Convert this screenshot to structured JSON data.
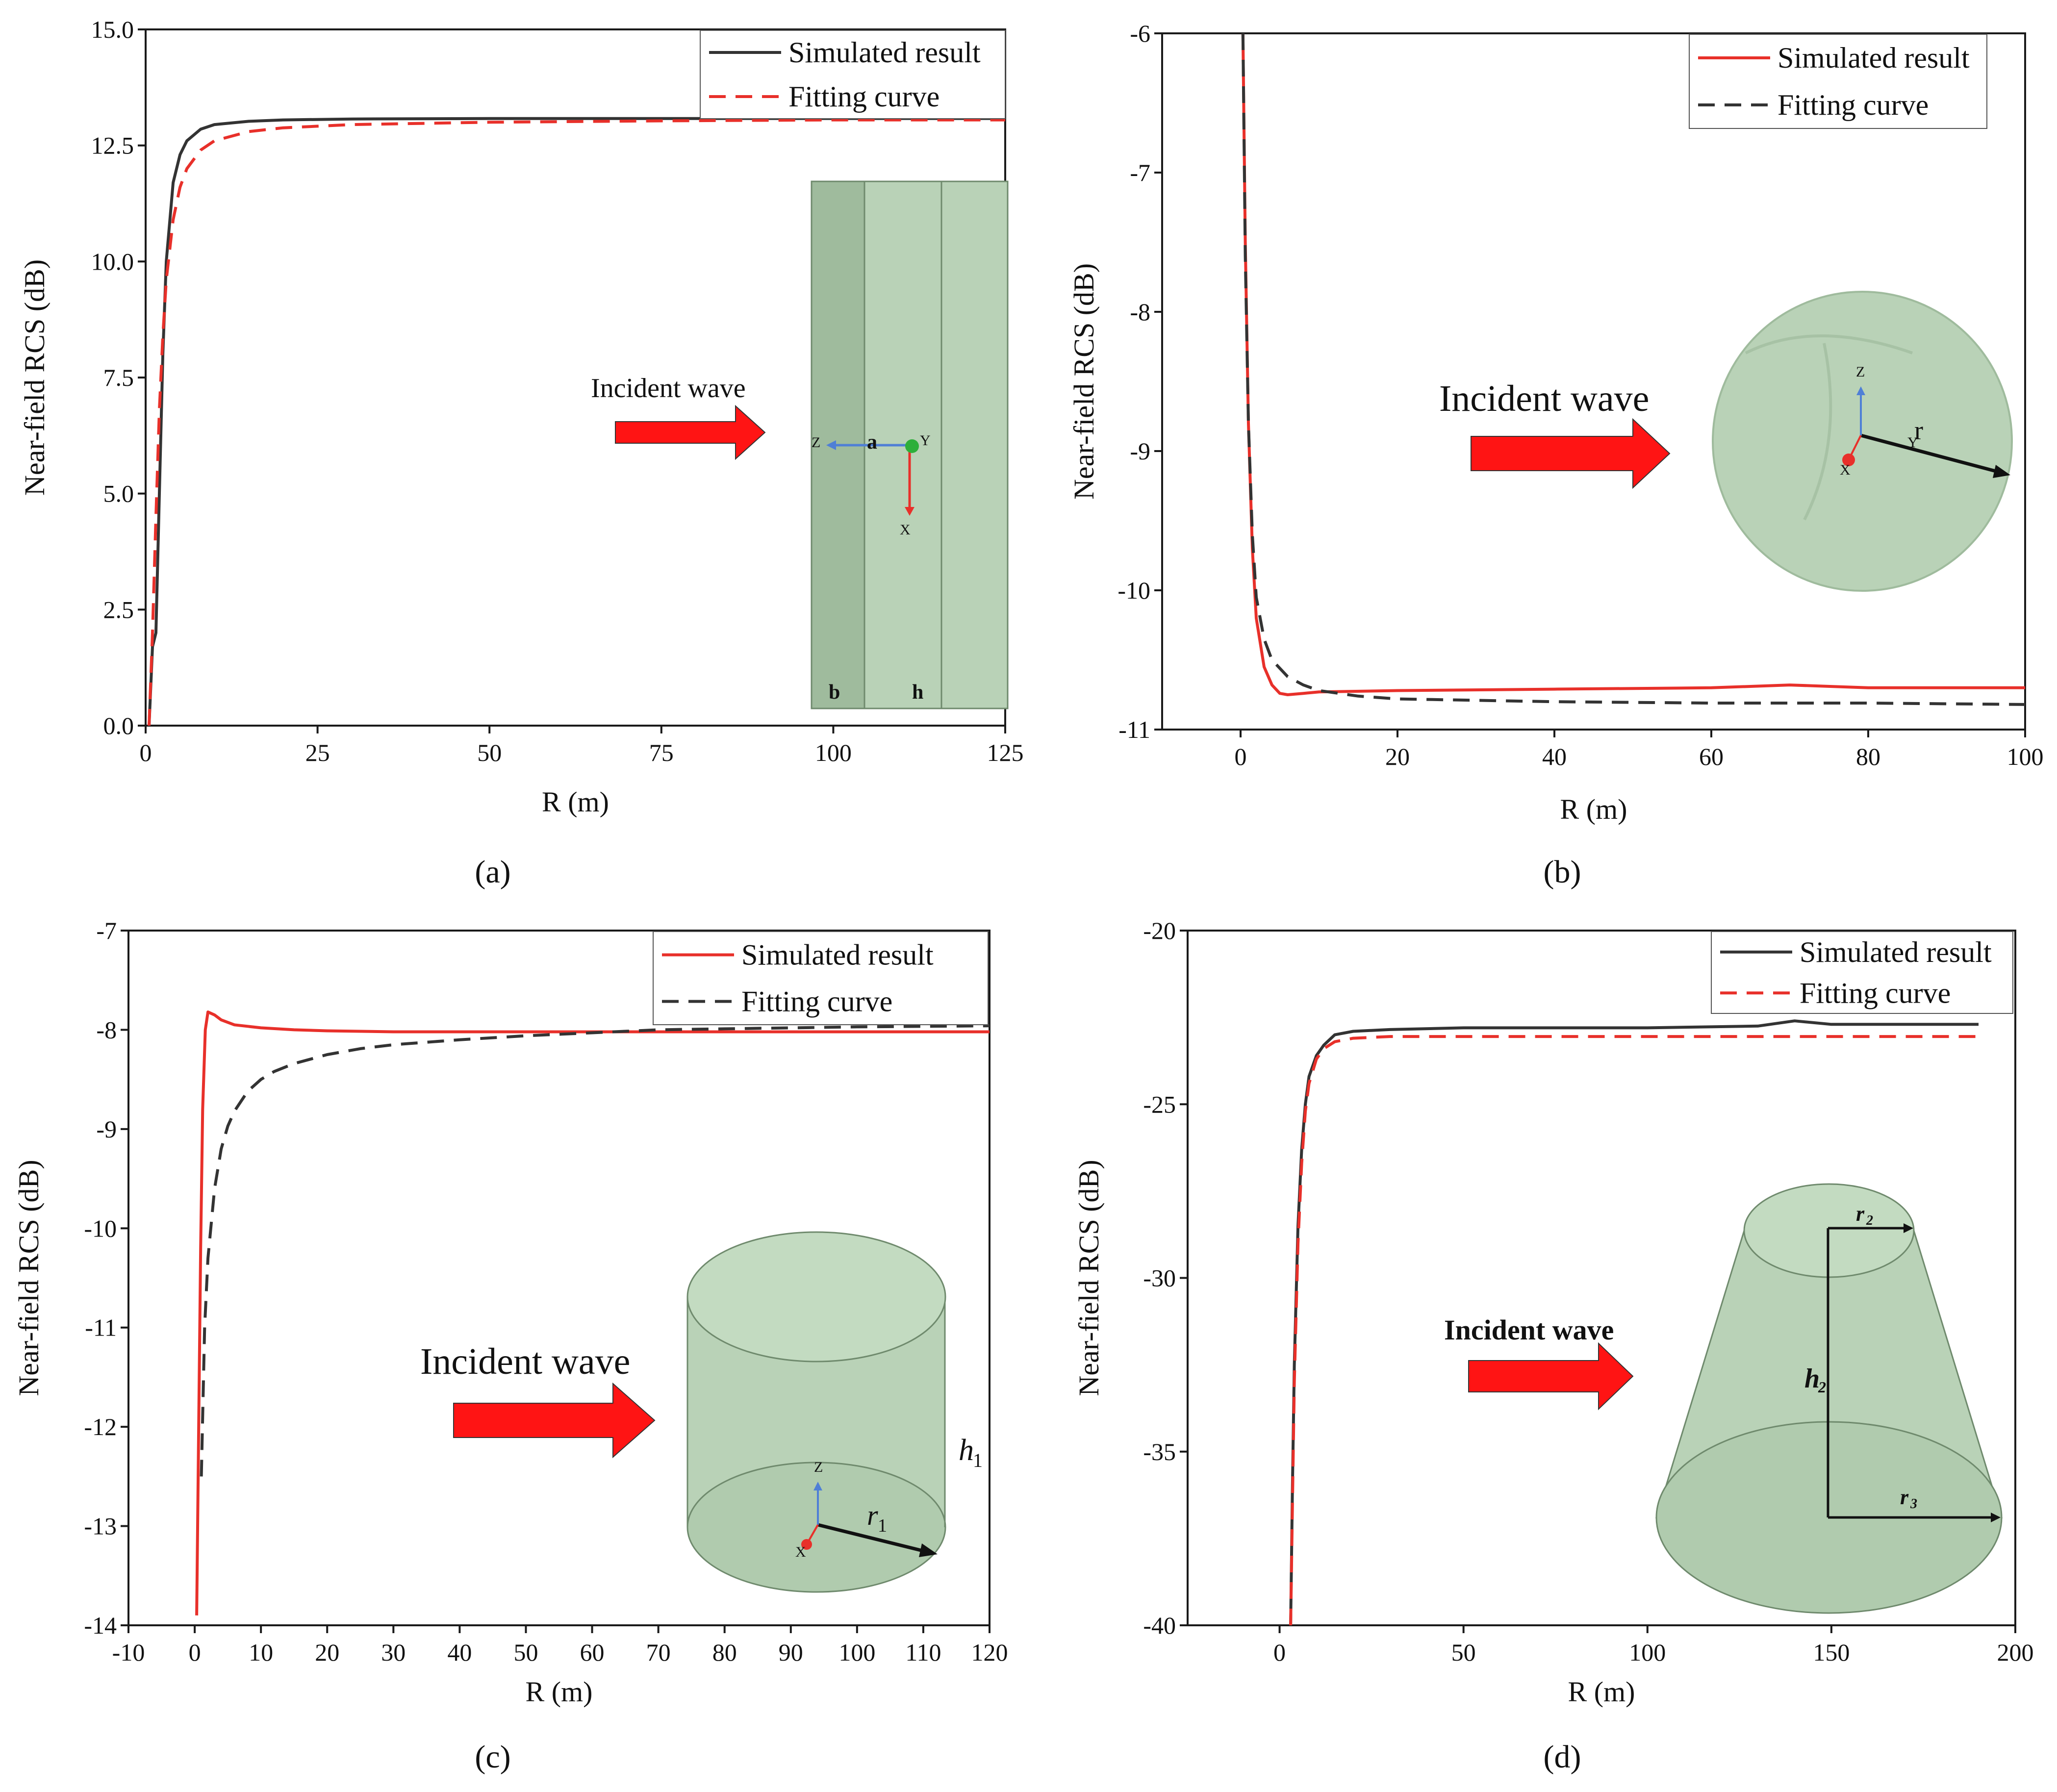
{
  "colors": {
    "red": "#e8302a",
    "black": "#333333",
    "frame": "#1a1a1a",
    "shape_fill": "#b9d2b7",
    "shape_fill_dark": "#9fbb9d",
    "shape_stroke": "#6f8a6d",
    "arrow_red": "#ff1414"
  },
  "chart_data": [
    {
      "panel": "a",
      "caption": "(a)",
      "type": "line",
      "xlabel": "R (m)",
      "ylabel": "Near-field RCS (dB)",
      "xlim": [
        0,
        125
      ],
      "ylim": [
        0,
        15
      ],
      "xticks": [
        0,
        25,
        50,
        75,
        100,
        125
      ],
      "xtick_labels": [
        "0",
        "25",
        "50",
        "75",
        "100",
        "125"
      ],
      "yticks": [
        0,
        2.5,
        5,
        7.5,
        10,
        12.5,
        15
      ],
      "ytick_labels": [
        "0.0",
        "2.5",
        "5.0",
        "7.5",
        "10.0",
        "12.5",
        "15.0"
      ],
      "legend": {
        "position": "top-right"
      },
      "series": [
        {
          "name": "Simulated result",
          "color": "black",
          "dash": "solid",
          "x": [
            0.5,
            1,
            1.5,
            2,
            2.5,
            3,
            4,
            5,
            6,
            8,
            10,
            15,
            20,
            30,
            50,
            75,
            100,
            125
          ],
          "y": [
            0.0,
            1.7,
            2.0,
            5.0,
            8.0,
            10.0,
            11.7,
            12.3,
            12.6,
            12.85,
            12.95,
            13.02,
            13.05,
            13.07,
            13.08,
            13.08,
            13.08,
            13.08
          ]
        },
        {
          "name": "Fitting curve",
          "color": "red",
          "dash": "dashed",
          "x": [
            0.5,
            1,
            1.5,
            2,
            2.5,
            3,
            4,
            5,
            6,
            8,
            10,
            15,
            20,
            30,
            50,
            75,
            100,
            125
          ],
          "y": [
            0.0,
            2.0,
            4.5,
            6.8,
            8.4,
            9.6,
            10.9,
            11.6,
            12.0,
            12.4,
            12.6,
            12.8,
            12.88,
            12.95,
            13.0,
            13.03,
            13.05,
            13.05
          ]
        }
      ],
      "inset": {
        "shape": "plate",
        "incident_label": "Incident wave",
        "axis_labels": [
          "Z",
          "Y",
          "X"
        ],
        "dim_labels": [
          "a",
          "b",
          "h"
        ]
      }
    },
    {
      "panel": "b",
      "caption": "(b)",
      "type": "line",
      "xlabel": "R (m)",
      "ylabel": "Near-field RCS (dB)",
      "xlim": [
        -10,
        100
      ],
      "ylim": [
        -11,
        -6
      ],
      "xticks": [
        0,
        20,
        40,
        60,
        80,
        100
      ],
      "xtick_labels": [
        "0",
        "20",
        "40",
        "60",
        "80",
        "100"
      ],
      "yticks": [
        -11,
        -10,
        -9,
        -8,
        -7,
        -6
      ],
      "ytick_labels": [
        "-11",
        "-10",
        "-9",
        "-8",
        "-7",
        "-6"
      ],
      "legend": {
        "position": "top-right"
      },
      "series": [
        {
          "name": "Simulated result",
          "color": "red",
          "dash": "solid",
          "x": [
            0.3,
            0.6,
            1,
            1.5,
            2,
            3,
            4,
            5,
            6,
            8,
            10,
            20,
            40,
            60,
            70,
            80,
            90,
            100
          ],
          "y": [
            -6.0,
            -7.5,
            -8.8,
            -9.7,
            -10.2,
            -10.55,
            -10.68,
            -10.74,
            -10.75,
            -10.74,
            -10.73,
            -10.72,
            -10.71,
            -10.7,
            -10.68,
            -10.7,
            -10.7,
            -10.7
          ]
        },
        {
          "name": "Fitting curve",
          "color": "black",
          "dash": "dashed",
          "x": [
            0.3,
            0.6,
            1,
            1.5,
            2,
            3,
            4,
            6,
            8,
            10,
            15,
            20,
            30,
            40,
            60,
            80,
            100
          ],
          "y": [
            -6.0,
            -7.6,
            -8.8,
            -9.6,
            -10.05,
            -10.35,
            -10.5,
            -10.62,
            -10.68,
            -10.72,
            -10.76,
            -10.78,
            -10.79,
            -10.8,
            -10.81,
            -10.81,
            -10.82
          ]
        }
      ],
      "inset": {
        "shape": "sphere",
        "incident_label": "Incident wave",
        "axis_labels": [
          "Z",
          "Y",
          "X"
        ],
        "dim_labels": [
          "r"
        ]
      }
    },
    {
      "panel": "c",
      "caption": "(c)",
      "type": "line",
      "xlabel": "R (m)",
      "ylabel": "Near-field RCS (dB)",
      "xlim": [
        -10,
        120
      ],
      "ylim": [
        -14,
        -7
      ],
      "xticks": [
        -10,
        0,
        10,
        20,
        30,
        40,
        50,
        60,
        70,
        80,
        90,
        100,
        110,
        120
      ],
      "xtick_labels": [
        "-10",
        "0",
        "10",
        "20",
        "30",
        "40",
        "50",
        "60",
        "70",
        "80",
        "90",
        "100",
        "110",
        "120"
      ],
      "yticks": [
        -14,
        -13,
        -12,
        -11,
        -10,
        -9,
        -8,
        -7
      ],
      "ytick_labels": [
        "-14",
        "-13",
        "-12",
        "-11",
        "-10",
        "-9",
        "-8",
        "-7"
      ],
      "legend": {
        "position": "top-right"
      },
      "series": [
        {
          "name": "Simulated result",
          "color": "red",
          "dash": "solid",
          "x": [
            0.3,
            0.6,
            0.9,
            1.2,
            1.6,
            2,
            3,
            4,
            6,
            10,
            15,
            20,
            30,
            40,
            60,
            80,
            100,
            120
          ],
          "y": [
            -13.9,
            -12.0,
            -10.2,
            -8.8,
            -8.0,
            -7.82,
            -7.85,
            -7.9,
            -7.95,
            -7.98,
            -8.0,
            -8.01,
            -8.02,
            -8.02,
            -8.02,
            -8.02,
            -8.02,
            -8.02
          ]
        },
        {
          "name": "Fitting curve",
          "color": "black",
          "dash": "dashed",
          "x": [
            1.0,
            1.5,
            2,
            3,
            4,
            5,
            6,
            8,
            10,
            12,
            15,
            20,
            25,
            30,
            40,
            50,
            60,
            70,
            80,
            100,
            120
          ],
          "y": [
            -12.5,
            -11.0,
            -10.3,
            -9.6,
            -9.2,
            -8.97,
            -8.82,
            -8.62,
            -8.5,
            -8.42,
            -8.34,
            -8.25,
            -8.19,
            -8.15,
            -8.1,
            -8.06,
            -8.03,
            -8.0,
            -7.99,
            -7.97,
            -7.96
          ]
        }
      ],
      "inset": {
        "shape": "cylinder",
        "incident_label": "Incident wave",
        "axis_labels": [
          "Z",
          "X"
        ],
        "dim_labels": [
          "h",
          "1",
          "r",
          "1"
        ]
      }
    },
    {
      "panel": "d",
      "caption": "(d)",
      "type": "line",
      "xlabel": "R (m)",
      "ylabel": "Near-field RCS (dB)",
      "xlim": [
        -25,
        200
      ],
      "ylim": [
        -40,
        -20
      ],
      "xticks": [
        0,
        50,
        100,
        150,
        200
      ],
      "xtick_labels": [
        "0",
        "50",
        "100",
        "150",
        "200"
      ],
      "yticks": [
        -40,
        -35,
        -30,
        -25,
        -20
      ],
      "ytick_labels": [
        "-40",
        "-35",
        "-30",
        "-25",
        "-20"
      ],
      "legend": {
        "position": "top-right"
      },
      "series": [
        {
          "name": "Simulated result",
          "color": "black",
          "dash": "solid",
          "x": [
            3,
            3.5,
            4,
            5,
            6,
            7,
            8,
            10,
            12,
            15,
            20,
            30,
            50,
            100,
            130,
            140,
            150,
            190
          ],
          "y": [
            -40,
            -36,
            -32.5,
            -28.5,
            -26.3,
            -25,
            -24.2,
            -23.6,
            -23.3,
            -23.0,
            -22.9,
            -22.85,
            -22.8,
            -22.8,
            -22.75,
            -22.6,
            -22.7,
            -22.7
          ]
        },
        {
          "name": "Fitting curve",
          "color": "red",
          "dash": "dashed",
          "x": [
            3,
            3.5,
            4,
            5,
            6,
            7,
            8,
            10,
            12,
            15,
            20,
            30,
            50,
            100,
            150,
            190
          ],
          "y": [
            -40,
            -36.5,
            -33,
            -29,
            -26.7,
            -25.2,
            -24.4,
            -23.7,
            -23.4,
            -23.2,
            -23.1,
            -23.05,
            -23.05,
            -23.05,
            -23.05,
            -23.05
          ]
        }
      ],
      "inset": {
        "shape": "frustum",
        "incident_label": "Incident wave",
        "dim_labels": [
          "r",
          "2",
          "h",
          "2",
          "r",
          "3"
        ]
      }
    }
  ]
}
